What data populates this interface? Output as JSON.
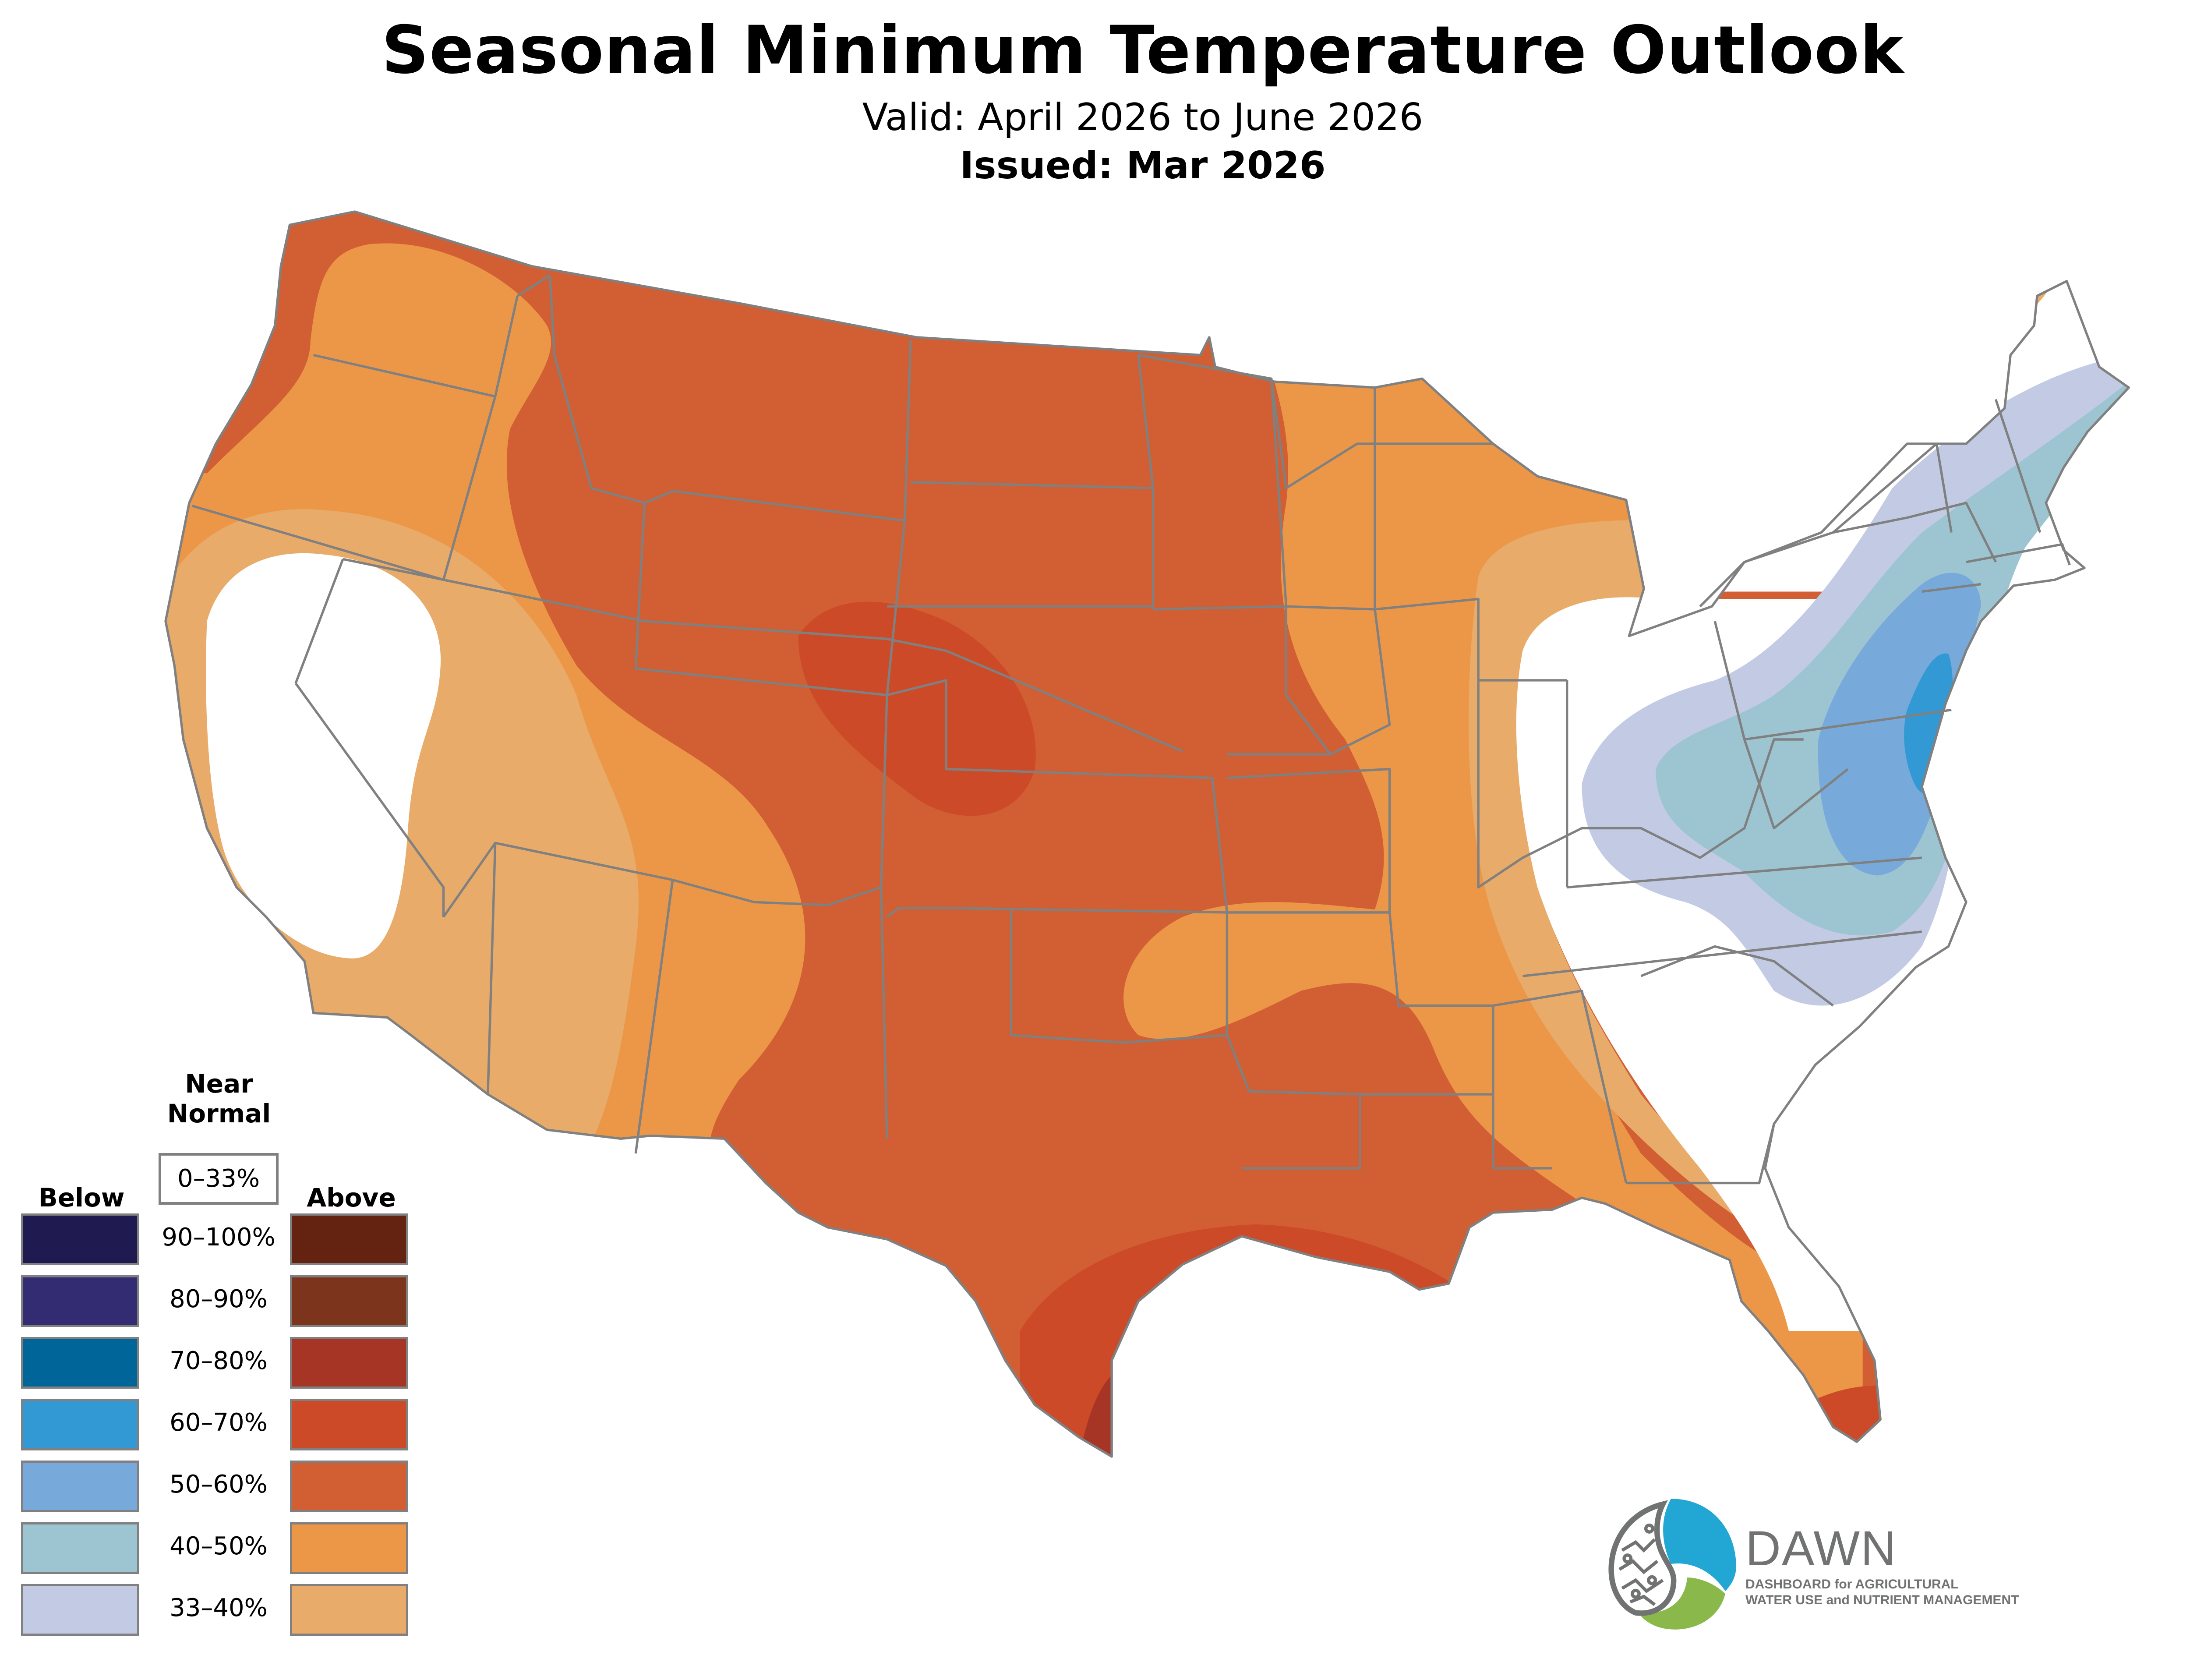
{
  "header": {
    "title": "Seasonal Minimum Temperature Outlook",
    "valid": "Valid: April 2026 to June 2026",
    "issued": "Issued: Mar 2026"
  },
  "legend": {
    "near_normal_heading": "Near Normal",
    "near_normal_range": "0–33%",
    "near_normal_color": "#ffffff",
    "below_heading": "Below",
    "above_heading": "Above",
    "rows": [
      {
        "label": "90–100%",
        "below_color": "#1f1a4f",
        "above_color": "#632310"
      },
      {
        "label": "80–90%",
        "below_color": "#332c73",
        "above_color": "#7c341c"
      },
      {
        "label": "70–80%",
        "below_color": "#006699",
        "above_color": "#a63525"
      },
      {
        "label": "60–70%",
        "below_color": "#3399d4",
        "above_color": "#cc4a28"
      },
      {
        "label": "50–60%",
        "below_color": "#77aadb",
        "above_color": "#d25e33"
      },
      {
        "label": "40–50%",
        "below_color": "#9dc5d1",
        "above_color": "#ec9748"
      },
      {
        "label": "33–40%",
        "below_color": "#c3cbe4",
        "above_color": "#e8ab69"
      }
    ]
  },
  "map": {
    "boundary_color": "#808080",
    "regions": [
      {
        "category": "Above",
        "probability": "50–60%",
        "area": "Northern Rockies, Plains, Texas, Gulf Coast, Florida peninsula"
      },
      {
        "category": "Above",
        "probability": "60–70%",
        "area": "Wyoming–Nebraska–Colorado core, Texas/Louisiana Gulf coast, South Florida"
      },
      {
        "category": "Above",
        "probability": "70–80%",
        "area": "Deep South Texas tip"
      },
      {
        "category": "Above",
        "probability": "40–50%",
        "area": "Pacific Northwest interior, Great Basin, Southwest, Upper Midwest, Southeast"
      },
      {
        "category": "Above",
        "probability": "33–40%",
        "area": "California, Arizona, Ohio Valley edge, Georgia–Carolina coast, northern Maine"
      },
      {
        "category": "Near Normal",
        "probability": "0–33%",
        "area": "Central California–Nevada, Ohio Valley, Carolinas, northern New England"
      },
      {
        "category": "Below",
        "probability": "33–40%",
        "area": "Appalachians to Maine"
      },
      {
        "category": "Below",
        "probability": "40–50%",
        "area": "Mid-Atlantic, New England coast"
      },
      {
        "category": "Below",
        "probability": "50–60%",
        "area": "Chesapeake, New York City area"
      },
      {
        "category": "Below",
        "probability": "60–70%",
        "area": "New Jersey, Delaware"
      }
    ]
  },
  "logo": {
    "name": "DAWN",
    "tagline_line1": "DASHBOARD for AGRICULTURAL",
    "tagline_line2": "WATER USE and NUTRIENT MANAGEMENT",
    "blue": "#22a7d4",
    "green": "#8ab84a",
    "gray": "#707372"
  }
}
